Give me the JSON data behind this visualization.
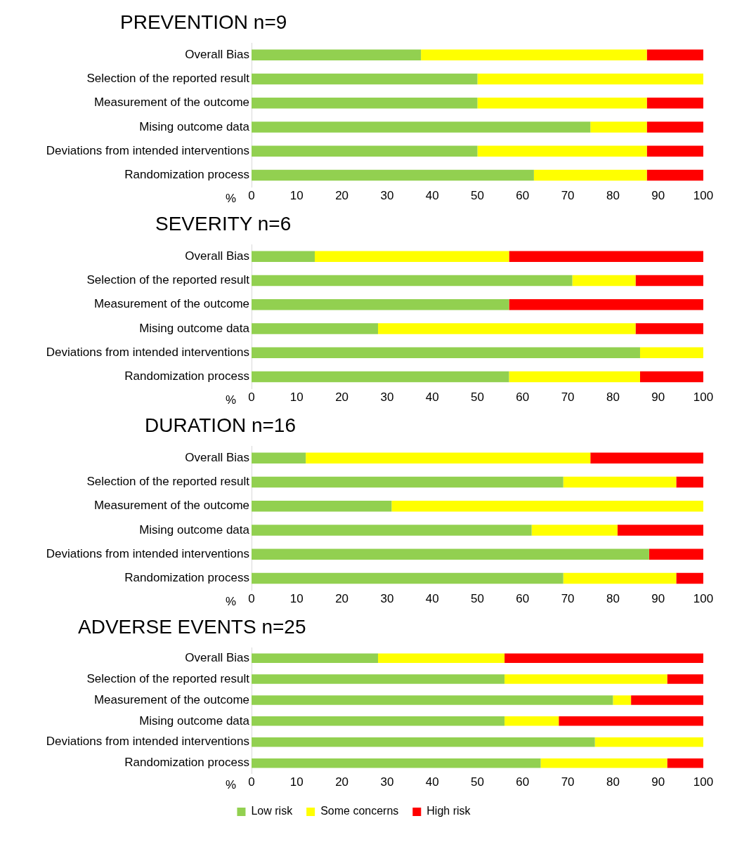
{
  "chart_data": [
    {
      "type": "bar",
      "orientation": "horizontal",
      "stacked": true,
      "title": "PREVENTION n=9",
      "xlabel": "%",
      "categories": [
        "Overall Bias",
        "Selection of the reported result",
        "Measurement of the outcome",
        "Mising outcome data",
        "Deviations from intended interventions",
        "Randomization process"
      ],
      "series": [
        {
          "color": "#92d050",
          "values": [
            37.5,
            50,
            50,
            75,
            50,
            62.5
          ]
        },
        {
          "color": "#ffff00",
          "values": [
            50,
            50,
            37.5,
            12.5,
            37.5,
            25
          ]
        },
        {
          "color": "#ff0000",
          "values": [
            12.5,
            0,
            12.5,
            12.5,
            12.5,
            12.5
          ]
        }
      ],
      "xlim": [
        0,
        100
      ],
      "xticks": [
        0,
        10,
        20,
        30,
        40,
        50,
        60,
        70,
        80,
        90,
        100
      ],
      "grid": false,
      "legend": false
    },
    {
      "type": "bar",
      "orientation": "horizontal",
      "stacked": true,
      "title": "SEVERITY n=6",
      "xlabel": "%",
      "categories": [
        "Overall Bias",
        "Selection of the reported result",
        "Measurement of the outcome",
        "Mising outcome data",
        "Deviations from intended interventions",
        "Randomization process"
      ],
      "series": [
        {
          "color": "#92d050",
          "values": [
            14,
            71,
            57,
            28,
            86,
            57
          ]
        },
        {
          "color": "#ffff00",
          "values": [
            43,
            14,
            0,
            57,
            14,
            29
          ]
        },
        {
          "color": "#ff0000",
          "values": [
            43,
            15,
            43,
            15,
            0,
            14
          ]
        }
      ],
      "xlim": [
        0,
        100
      ],
      "xticks": [
        0,
        10,
        20,
        30,
        40,
        50,
        60,
        70,
        80,
        90,
        100
      ],
      "grid": false,
      "legend": false
    },
    {
      "type": "bar",
      "orientation": "horizontal",
      "stacked": true,
      "title": "DURATION n=16",
      "xlabel": "%",
      "categories": [
        "Overall Bias",
        "Selection of the reported result",
        "Measurement of the outcome",
        "Mising outcome data",
        "Deviations from intended interventions",
        "Randomization process"
      ],
      "series": [
        {
          "color": "#92d050",
          "values": [
            12,
            69,
            31,
            62,
            88,
            69
          ]
        },
        {
          "color": "#ffff00",
          "values": [
            63,
            25,
            69,
            19,
            0,
            25
          ]
        },
        {
          "color": "#ff0000",
          "values": [
            25,
            6,
            0,
            19,
            12,
            6
          ]
        }
      ],
      "xlim": [
        0,
        100
      ],
      "xticks": [
        0,
        10,
        20,
        30,
        40,
        50,
        60,
        70,
        80,
        90,
        100
      ],
      "grid": false,
      "legend": false
    },
    {
      "type": "bar",
      "orientation": "horizontal",
      "stacked": true,
      "title": "ADVERSE EVENTS n=25",
      "xlabel": "%",
      "categories": [
        "Overall Bias",
        "Selection of the reported result",
        "Measurement of the outcome",
        "Mising outcome data",
        "Deviations from intended interventions",
        "Randomization process"
      ],
      "series": [
        {
          "name": "Low risk",
          "color": "#92d050",
          "values": [
            28,
            56,
            80,
            56,
            76,
            64
          ]
        },
        {
          "name": "Some concerns",
          "color": "#ffff00",
          "values": [
            28,
            36,
            4,
            12,
            24,
            28
          ]
        },
        {
          "name": "High risk",
          "color": "#ff0000",
          "values": [
            44,
            8,
            16,
            32,
            0,
            8
          ]
        }
      ],
      "xlim": [
        0,
        100
      ],
      "xticks": [
        0,
        10,
        20,
        30,
        40,
        50,
        60,
        70,
        80,
        90,
        100
      ],
      "grid": false,
      "legend": "bottom"
    }
  ]
}
